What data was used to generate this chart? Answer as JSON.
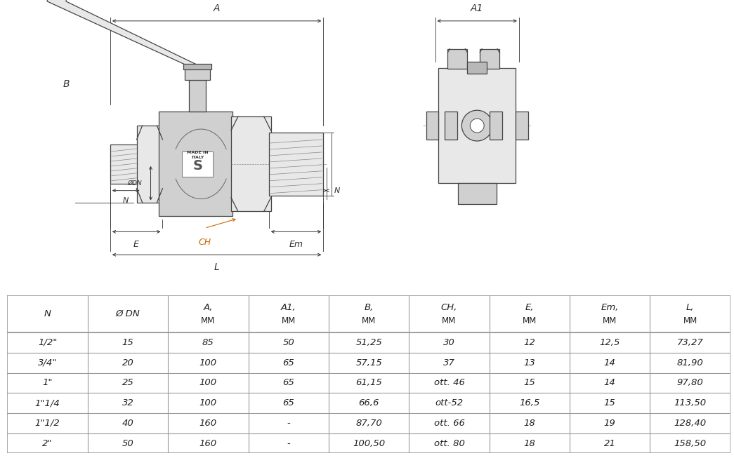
{
  "table_headers_line1": [
    "N",
    "Ø DN",
    "A,",
    "A1,",
    "B,",
    "CH,",
    "E,",
    "Em,",
    "L,"
  ],
  "table_headers_line2": [
    "",
    "",
    "MM",
    "MM",
    "MM",
    "MM",
    "MM",
    "MM",
    "MM"
  ],
  "table_rows": [
    [
      "1/2\"",
      "15",
      "85",
      "50",
      "51,25",
      "30",
      "12",
      "12,5",
      "73,27"
    ],
    [
      "3/4\"",
      "20",
      "100",
      "65",
      "57,15",
      "37",
      "13",
      "14",
      "81,90"
    ],
    [
      "1\"",
      "25",
      "100",
      "65",
      "61,15",
      "ott. 46",
      "15",
      "14",
      "97,80"
    ],
    [
      "1\"1/4",
      "32",
      "100",
      "65",
      "66,6",
      "ott-52",
      "16,5",
      "15",
      "113,50"
    ],
    [
      "1\"1/2",
      "40",
      "160",
      "-",
      "87,70",
      "ott. 66",
      "18",
      "19",
      "128,40"
    ],
    [
      "2\"",
      "50",
      "160",
      "-",
      "100,50",
      "ott. 80",
      "18",
      "21",
      "158,50"
    ]
  ],
  "col_widths_rel": [
    1.0,
    1.1,
    1.0,
    1.0,
    1.1,
    1.2,
    1.0,
    1.1,
    1.0
  ],
  "bg_color": "#ffffff",
  "border_color": "#999999",
  "text_color": "#222222",
  "dim_color": "#333333",
  "orange_color": "#cc6600",
  "draw_color": "#444444",
  "fill_light": "#e8e8e8",
  "fill_mid": "#d0d0d0",
  "fill_dark": "#b8b8b8"
}
